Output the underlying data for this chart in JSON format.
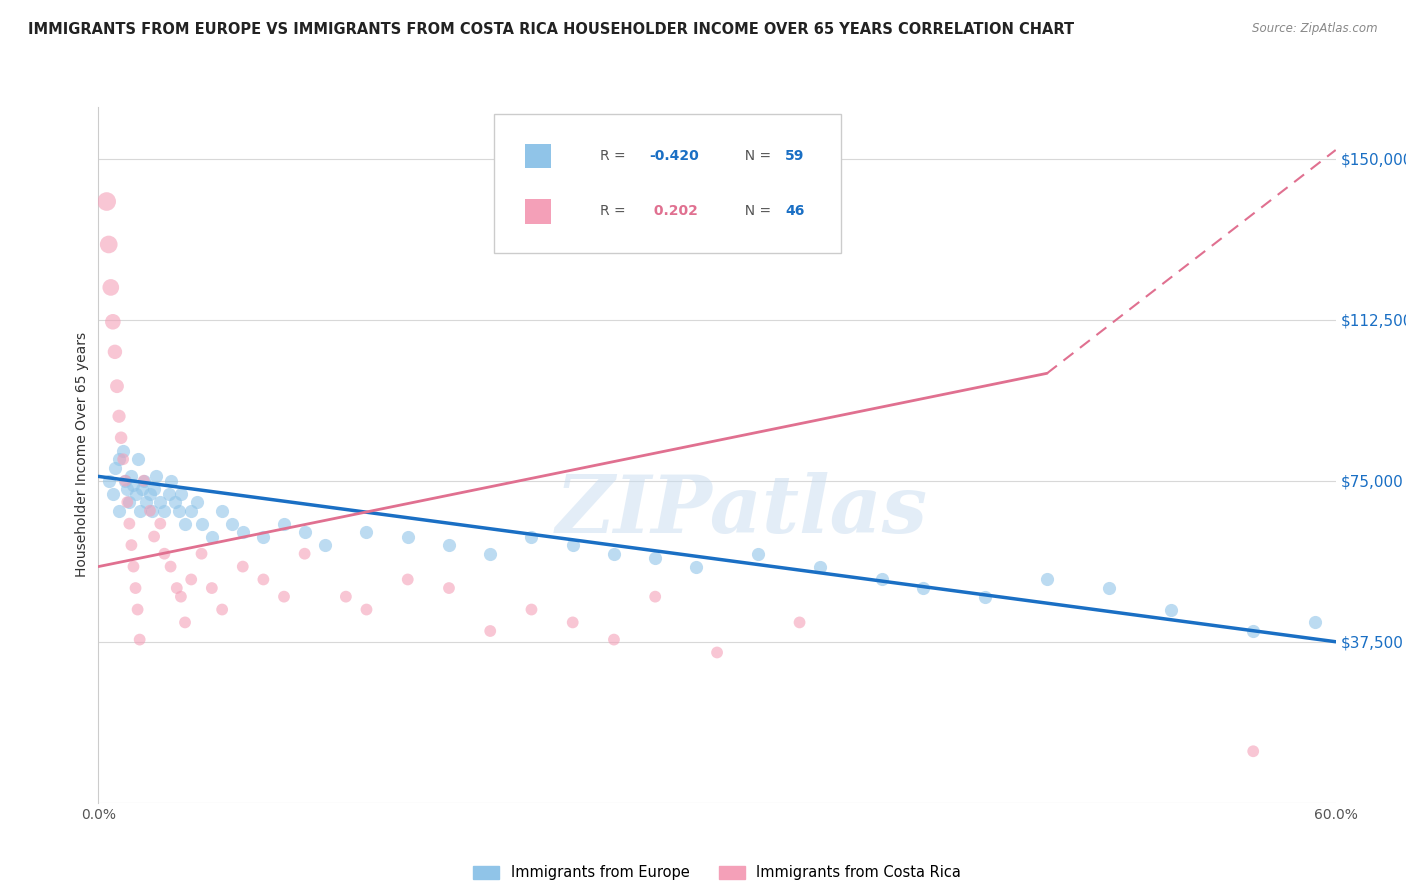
{
  "title": "IMMIGRANTS FROM EUROPE VS IMMIGRANTS FROM COSTA RICA HOUSEHOLDER INCOME OVER 65 YEARS CORRELATION CHART",
  "source": "Source: ZipAtlas.com",
  "ylabel": "Householder Income Over 65 years",
  "watermark": "ZIPatlas",
  "yticks": [
    0,
    37500,
    75000,
    112500,
    150000
  ],
  "ytick_labels": [
    "",
    "$37,500",
    "$75,000",
    "$112,500",
    "$150,000"
  ],
  "xlim": [
    0.0,
    0.6
  ],
  "ylim": [
    0,
    162000
  ],
  "blue_scatter_x": [
    0.005,
    0.007,
    0.008,
    0.01,
    0.01,
    0.012,
    0.013,
    0.014,
    0.015,
    0.016,
    0.017,
    0.018,
    0.019,
    0.02,
    0.021,
    0.022,
    0.023,
    0.025,
    0.026,
    0.027,
    0.028,
    0.03,
    0.032,
    0.034,
    0.035,
    0.037,
    0.039,
    0.04,
    0.042,
    0.045,
    0.048,
    0.05,
    0.055,
    0.06,
    0.065,
    0.07,
    0.08,
    0.09,
    0.1,
    0.11,
    0.13,
    0.15,
    0.17,
    0.19,
    0.21,
    0.23,
    0.25,
    0.27,
    0.29,
    0.32,
    0.35,
    0.38,
    0.4,
    0.43,
    0.46,
    0.49,
    0.52,
    0.56,
    0.59
  ],
  "blue_scatter_y": [
    75000,
    72000,
    78000,
    80000,
    68000,
    82000,
    75000,
    73000,
    70000,
    76000,
    74000,
    72000,
    80000,
    68000,
    73000,
    75000,
    70000,
    72000,
    68000,
    73000,
    76000,
    70000,
    68000,
    72000,
    75000,
    70000,
    68000,
    72000,
    65000,
    68000,
    70000,
    65000,
    62000,
    68000,
    65000,
    63000,
    62000,
    65000,
    63000,
    60000,
    63000,
    62000,
    60000,
    58000,
    62000,
    60000,
    58000,
    57000,
    55000,
    58000,
    55000,
    52000,
    50000,
    48000,
    52000,
    50000,
    45000,
    40000,
    42000
  ],
  "blue_scatter_size": [
    80,
    80,
    80,
    80,
    80,
    80,
    80,
    80,
    80,
    80,
    80,
    80,
    80,
    80,
    80,
    80,
    80,
    80,
    80,
    80,
    80,
    80,
    80,
    80,
    80,
    80,
    80,
    80,
    80,
    80,
    80,
    80,
    80,
    80,
    80,
    80,
    80,
    80,
    80,
    80,
    80,
    80,
    80,
    80,
    80,
    80,
    80,
    80,
    80,
    80,
    80,
    80,
    80,
    80,
    80,
    80,
    80,
    80,
    80
  ],
  "pink_scatter_x": [
    0.004,
    0.005,
    0.006,
    0.007,
    0.008,
    0.009,
    0.01,
    0.011,
    0.012,
    0.013,
    0.014,
    0.015,
    0.016,
    0.017,
    0.018,
    0.019,
    0.02,
    0.022,
    0.025,
    0.027,
    0.03,
    0.032,
    0.035,
    0.038,
    0.04,
    0.042,
    0.045,
    0.05,
    0.055,
    0.06,
    0.07,
    0.08,
    0.09,
    0.1,
    0.12,
    0.13,
    0.15,
    0.17,
    0.19,
    0.21,
    0.23,
    0.25,
    0.27,
    0.3,
    0.34,
    0.56
  ],
  "pink_scatter_y": [
    140000,
    130000,
    120000,
    112000,
    105000,
    97000,
    90000,
    85000,
    80000,
    75000,
    70000,
    65000,
    60000,
    55000,
    50000,
    45000,
    38000,
    75000,
    68000,
    62000,
    65000,
    58000,
    55000,
    50000,
    48000,
    42000,
    52000,
    58000,
    50000,
    45000,
    55000,
    52000,
    48000,
    58000,
    48000,
    45000,
    52000,
    50000,
    40000,
    45000,
    42000,
    38000,
    48000,
    35000,
    42000,
    12000
  ],
  "pink_scatter_size": [
    200,
    180,
    160,
    140,
    120,
    110,
    100,
    90,
    80,
    80,
    80,
    80,
    80,
    80,
    80,
    80,
    80,
    80,
    80,
    80,
    80,
    80,
    80,
    80,
    80,
    80,
    80,
    80,
    80,
    80,
    80,
    80,
    80,
    80,
    80,
    80,
    80,
    80,
    80,
    80,
    80,
    80,
    80,
    80,
    80,
    80
  ],
  "blue_line_x": [
    0.0,
    0.6
  ],
  "blue_line_y": [
    76000,
    37500
  ],
  "pink_solid_line_x": [
    0.0,
    0.46
  ],
  "pink_solid_line_y": [
    55000,
    100000
  ],
  "pink_dash_line_x": [
    0.46,
    0.6
  ],
  "pink_dash_line_y": [
    100000,
    152000
  ],
  "background_color": "#ffffff",
  "grid_color": "#d8d8d8",
  "blue_color": "#90c4e8",
  "pink_color": "#f4a0b8",
  "blue_line_color": "#1a6fc4",
  "pink_line_color": "#e07090",
  "scatter_alpha": 0.6,
  "scatter_size": 90,
  "legend_blue_text_color": "#1a6fc4",
  "legend_pink_text_color": "#e07090",
  "legend_n_color": "#1a6fc4"
}
